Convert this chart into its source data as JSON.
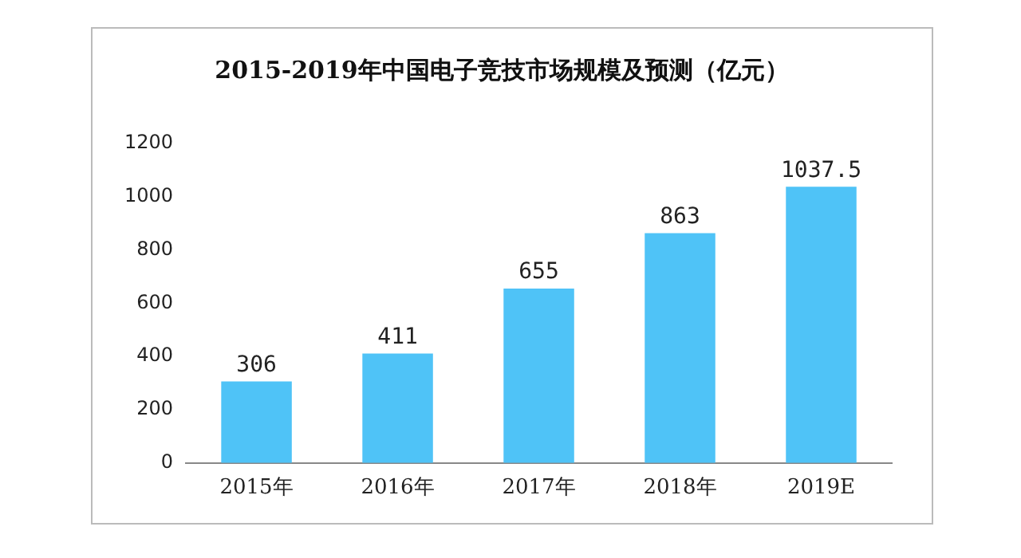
{
  "chart_data": {
    "type": "bar",
    "title": "2015-2019年中国电子竞技市场规模及预测（亿元）",
    "categories": [
      "2015年",
      "2016年",
      "2017年",
      "2018年",
      "2019E"
    ],
    "values": [
      306,
      411,
      655,
      863,
      1037.5
    ],
    "color": "#4fc3f7",
    "ylim": [
      0,
      1200
    ],
    "yticks": [
      0,
      200,
      400,
      600,
      800,
      1000,
      1200
    ],
    "grid": false,
    "legend": false,
    "data_labels": true
  }
}
